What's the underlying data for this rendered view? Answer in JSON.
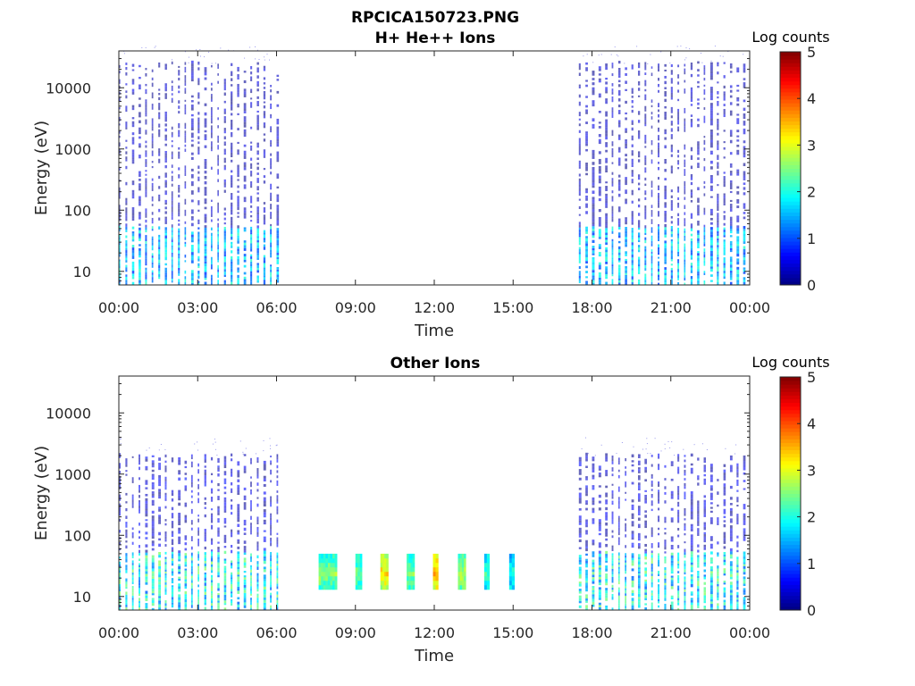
{
  "figure": {
    "title_line1": "RPCICA150723.PNG"
  },
  "chart_data": [
    {
      "type": "heatmap",
      "title": "H+ He++ Ions",
      "xlabel": "Time",
      "ylabel": "Energy (eV)",
      "y_scale": "log",
      "ylim": [
        6,
        40000
      ],
      "xlim": [
        0,
        24
      ],
      "x_unit": "hours",
      "x_ticks": [
        "00:00",
        "03:00",
        "06:00",
        "09:00",
        "12:00",
        "15:00",
        "18:00",
        "21:00",
        "00:00"
      ],
      "y_ticks": [
        {
          "value": 10,
          "label": "10"
        },
        {
          "value": 100,
          "label": "100"
        },
        {
          "value": 1000,
          "label": "1000"
        },
        {
          "value": 10000,
          "label": "10000"
        }
      ],
      "colorbar": {
        "label": "Log counts",
        "min": 0,
        "max": 5,
        "ticks": [
          "0",
          "1",
          "2",
          "3",
          "4",
          "5"
        ],
        "colormap": "jet"
      },
      "data_intervals": [
        [
          0.0,
          6.15
        ],
        [
          17.5,
          24.0
        ]
      ],
      "strip_period_hours": 0.25,
      "typical_log_counts": {
        "low_energy_10_50eV": 1.8,
        "high_energy_100_20000eV": 0.3
      },
      "energy_range_eV": [
        6,
        25000
      ],
      "grid": false
    },
    {
      "type": "heatmap",
      "title": "Other Ions",
      "xlabel": "Time",
      "ylabel": "Energy (eV)",
      "y_scale": "log",
      "ylim": [
        6,
        40000
      ],
      "xlim": [
        0,
        24
      ],
      "x_unit": "hours",
      "x_ticks": [
        "00:00",
        "03:00",
        "06:00",
        "09:00",
        "12:00",
        "15:00",
        "18:00",
        "21:00",
        "00:00"
      ],
      "y_ticks": [
        {
          "value": 10,
          "label": "10"
        },
        {
          "value": 100,
          "label": "100"
        },
        {
          "value": 1000,
          "label": "1000"
        },
        {
          "value": 10000,
          "label": "10000"
        }
      ],
      "colorbar": {
        "label": "Log counts",
        "min": 0,
        "max": 5,
        "ticks": [
          "0",
          "1",
          "2",
          "3",
          "4",
          "5"
        ],
        "colormap": "jet"
      },
      "data_intervals": [
        [
          0.0,
          6.15
        ],
        [
          17.5,
          24.0
        ]
      ],
      "strip_period_hours": 0.25,
      "typical_log_counts": {
        "low_energy_10_50eV": 2.2,
        "high_energy_100_2000eV": 0.4
      },
      "energy_range_eV": [
        6,
        2000
      ],
      "blocks": [
        {
          "t_start": 7.6,
          "t_end": 8.3,
          "e_low": 13,
          "e_high": 50,
          "log_counts": 2.6
        },
        {
          "t_start": 9.0,
          "t_end": 9.25,
          "e_low": 13,
          "e_high": 50,
          "log_counts": 2.4
        },
        {
          "t_start": 9.95,
          "t_end": 10.25,
          "e_low": 13,
          "e_high": 50,
          "log_counts": 3.3
        },
        {
          "t_start": 10.95,
          "t_end": 11.25,
          "e_low": 13,
          "e_high": 50,
          "log_counts": 2.5
        },
        {
          "t_start": 11.95,
          "t_end": 12.15,
          "e_low": 13,
          "e_high": 50,
          "log_counts": 3.6
        },
        {
          "t_start": 12.9,
          "t_end": 13.2,
          "e_low": 13,
          "e_high": 50,
          "log_counts": 2.8
        },
        {
          "t_start": 13.9,
          "t_end": 14.1,
          "e_low": 13,
          "e_high": 50,
          "log_counts": 2.2
        },
        {
          "t_start": 14.85,
          "t_end": 15.05,
          "e_low": 13,
          "e_high": 50,
          "log_counts": 2.0
        }
      ],
      "grid": false
    }
  ]
}
